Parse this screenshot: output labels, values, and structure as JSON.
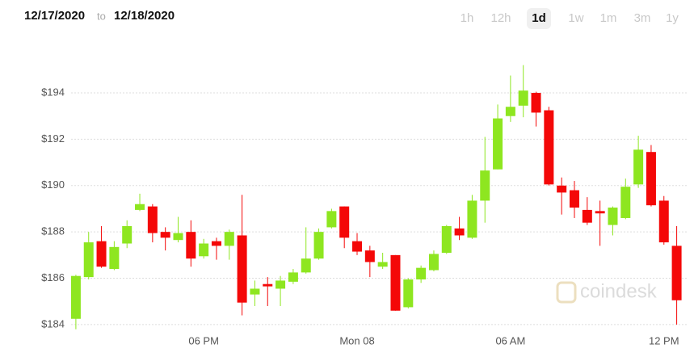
{
  "header": {
    "date_from": "12/17/2020",
    "separator": "to",
    "date_to": "12/18/2020",
    "ranges": [
      "1h",
      "12h",
      "1d",
      "1w",
      "1m",
      "3m",
      "1y"
    ],
    "active_range": 2
  },
  "watermark": "coindesk",
  "chart_data": {
    "type": "candlestick",
    "categories": [
      null,
      null,
      null,
      null,
      null,
      null,
      null,
      null,
      null,
      null,
      "06 PM",
      null,
      null,
      null,
      null,
      null,
      null,
      null,
      null,
      null,
      null,
      null,
      "Mon 08",
      null,
      null,
      null,
      null,
      null,
      null,
      null,
      null,
      null,
      null,
      null,
      "06 AM",
      null,
      null,
      null,
      null,
      null,
      null,
      null,
      null,
      null,
      null,
      null,
      "12 PM",
      null
    ],
    "open": [
      184.25,
      186.05,
      187.6,
      186.4,
      187.5,
      188.95,
      189.1,
      188.0,
      187.65,
      188.0,
      186.95,
      187.6,
      187.4,
      187.85,
      185.3,
      185.75,
      185.55,
      185.85,
      186.25,
      186.85,
      188.2,
      189.1,
      187.6,
      187.2,
      186.5,
      187.0,
      184.75,
      185.95,
      186.35,
      187.1,
      188.15,
      187.75,
      189.35,
      190.7,
      193.0,
      193.45,
      194.0,
      193.25,
      190.0,
      189.8,
      188.95,
      188.9,
      188.3,
      188.6,
      190.05,
      191.45,
      189.35,
      187.4
    ],
    "high": [
      186.15,
      188.0,
      188.25,
      187.6,
      188.5,
      189.65,
      189.2,
      188.2,
      188.65,
      188.5,
      187.7,
      187.75,
      188.1,
      189.6,
      185.9,
      186.05,
      186.1,
      186.4,
      188.2,
      188.15,
      189.0,
      189.1,
      187.95,
      187.4,
      187.1,
      187.0,
      186.0,
      186.55,
      187.2,
      188.3,
      188.65,
      189.6,
      192.1,
      193.5,
      194.75,
      195.2,
      194.05,
      193.4,
      190.35,
      190.2,
      189.5,
      189.35,
      189.1,
      190.3,
      192.15,
      191.75,
      189.55,
      188.25
    ],
    "low": [
      183.8,
      185.95,
      186.45,
      186.35,
      187.3,
      188.9,
      187.55,
      187.2,
      187.55,
      186.5,
      186.85,
      186.8,
      186.8,
      184.4,
      184.8,
      184.8,
      184.8,
      185.75,
      186.2,
      186.8,
      188.15,
      187.3,
      187.0,
      186.05,
      186.4,
      184.6,
      184.7,
      185.8,
      186.3,
      187.05,
      187.65,
      187.7,
      188.4,
      190.7,
      192.75,
      192.95,
      192.55,
      190.0,
      188.75,
      188.6,
      188.3,
      187.4,
      187.85,
      188.55,
      189.9,
      189.1,
      187.45,
      184.0
    ],
    "close": [
      186.1,
      187.55,
      186.5,
      187.35,
      188.25,
      189.2,
      187.95,
      187.75,
      187.95,
      186.85,
      187.5,
      187.4,
      188.0,
      184.95,
      185.55,
      185.65,
      185.9,
      186.25,
      186.85,
      188.0,
      188.9,
      187.75,
      187.15,
      186.7,
      186.7,
      184.6,
      185.95,
      186.45,
      187.05,
      188.25,
      187.85,
      189.35,
      190.65,
      192.9,
      193.4,
      194.1,
      193.15,
      190.05,
      189.7,
      189.05,
      188.4,
      188.8,
      189.05,
      189.95,
      191.55,
      189.15,
      187.55,
      185.05
    ],
    "up_color": "#8ee620",
    "down_color": "#f40808",
    "ylim": [
      183.37,
      195.57
    ],
    "yticks": [
      {
        "value": 184,
        "label": "$184"
      },
      {
        "value": 186,
        "label": "$186"
      },
      {
        "value": 188,
        "label": "$188"
      },
      {
        "value": 190,
        "label": "$190"
      },
      {
        "value": 192,
        "label": "$192"
      },
      {
        "value": 194,
        "label": "$194"
      }
    ],
    "grid": true
  }
}
